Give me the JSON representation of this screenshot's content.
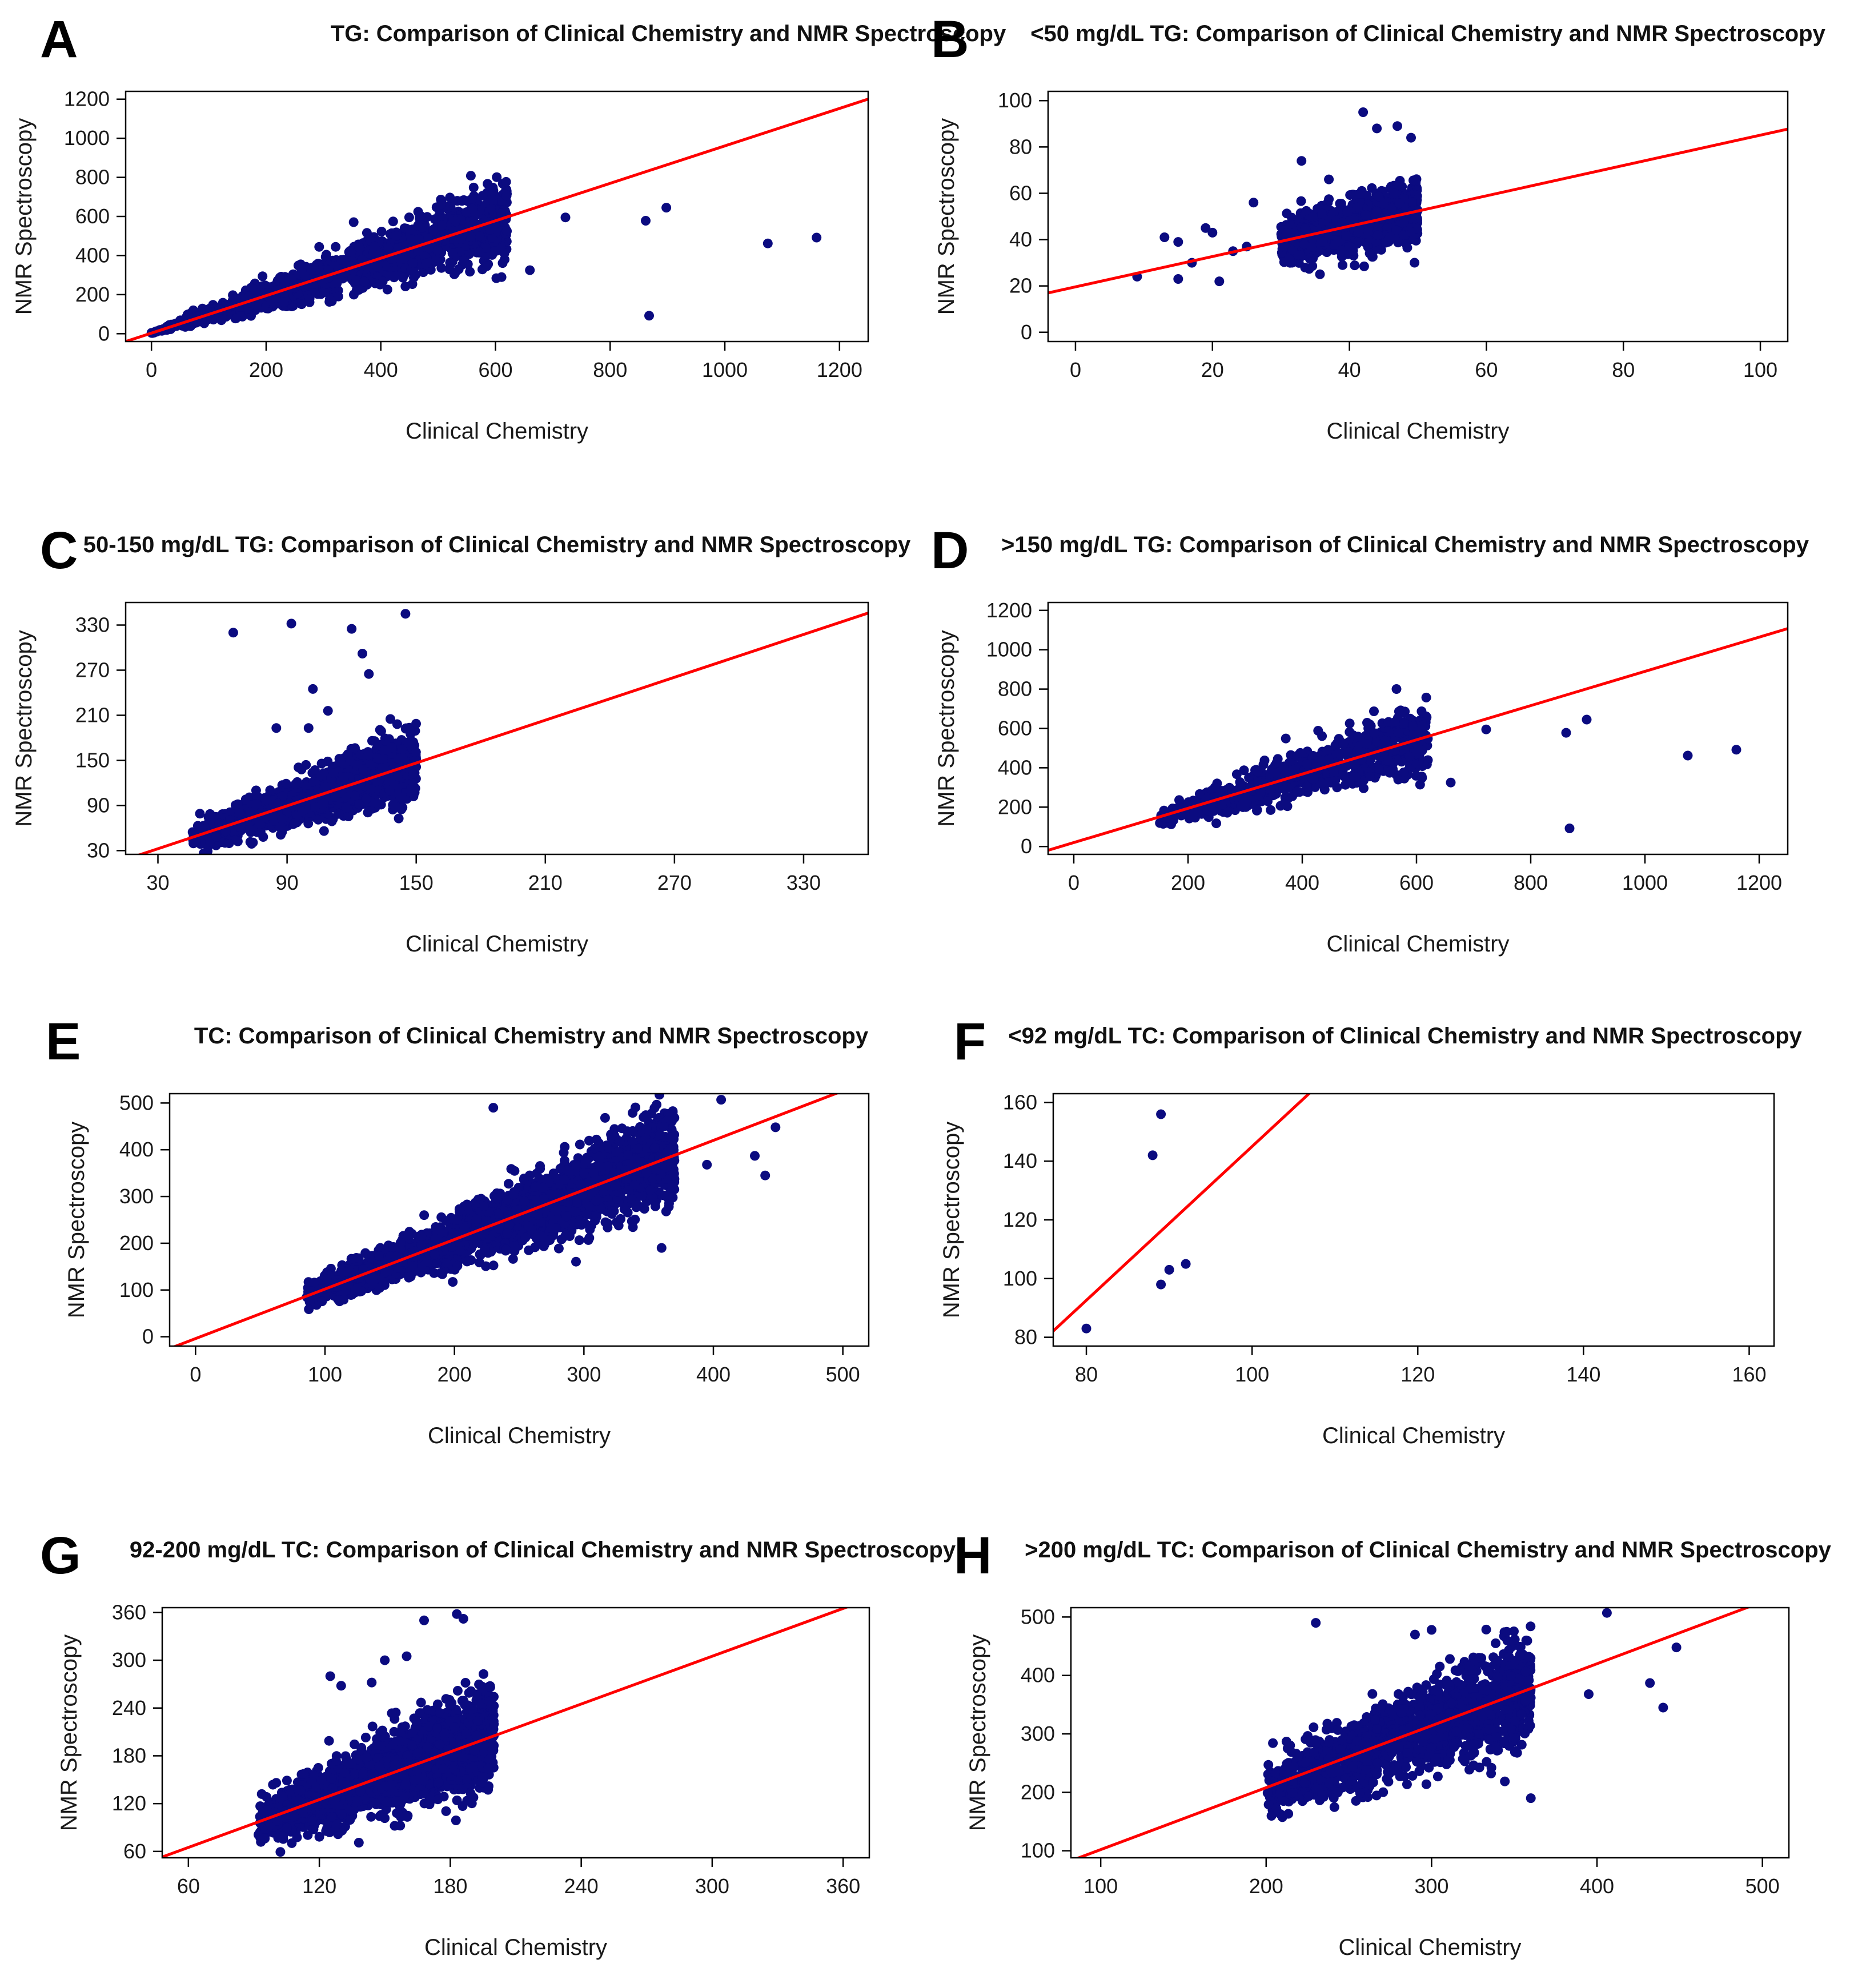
{
  "figure": {
    "point_color": "#0b0b80",
    "fit_line_color": "#ff0000"
  },
  "chart_data": [
    {
      "panel": "A",
      "type": "scatter",
      "title": "TG: Comparison of Clinical Chemistry and NMR Spectroscopy",
      "xlabel": "Clinical Chemistry",
      "ylabel": "NMR Spectroscopy",
      "xlim": [
        -45,
        1250
      ],
      "ylim": [
        -40,
        1240
      ],
      "xticks": [
        0,
        200,
        400,
        600,
        800,
        1000,
        1200
      ],
      "yticks": [
        0,
        200,
        400,
        600,
        800,
        1000,
        1200
      ],
      "fit_line": {
        "slope": 0.958,
        "intercept": 3
      },
      "cloud": {
        "x_min": 0,
        "x_max": 620,
        "slope": 0.958,
        "intercept": 3,
        "sd_rel": 0.2,
        "n": 1500,
        "seed": 11
      },
      "outliers": [
        [
          868,
          92
        ],
        [
          862,
          578
        ],
        [
          898,
          645
        ],
        [
          1075,
          462
        ],
        [
          1160,
          492
        ],
        [
          660,
          325
        ],
        [
          722,
          595
        ],
        [
          610,
          615
        ]
      ]
    },
    {
      "panel": "B",
      "type": "scatter",
      "title": "<50 mg/dL TG: Comparison of Clinical Chemistry and NMR Spectroscopy",
      "xlabel": "Clinical Chemistry",
      "ylabel": "NMR Spectroscopy",
      "xlim": [
        -4,
        104
      ],
      "ylim": [
        -4,
        104
      ],
      "xticks": [
        0,
        20,
        40,
        60,
        80,
        100
      ],
      "yticks": [
        0,
        20,
        40,
        60,
        80,
        100
      ],
      "fit_line": {
        "slope": 0.655,
        "intercept": 19.6
      },
      "cloud": {
        "x_min": 30,
        "x_max": 50,
        "slope": 0.655,
        "intercept": 19.6,
        "sd_rel": 0.13,
        "n": 1300,
        "seed": 22
      },
      "outliers": [
        [
          9,
          24
        ],
        [
          13,
          41
        ],
        [
          15,
          39
        ],
        [
          15,
          23
        ],
        [
          17,
          30
        ],
        [
          19,
          45
        ],
        [
          20,
          43
        ],
        [
          21,
          22
        ],
        [
          23,
          35
        ],
        [
          25,
          37
        ],
        [
          26,
          56
        ],
        [
          33,
          74
        ],
        [
          37,
          66
        ],
        [
          39,
          29
        ],
        [
          42,
          95
        ],
        [
          44,
          88
        ],
        [
          47,
          89
        ],
        [
          49,
          84
        ]
      ]
    },
    {
      "panel": "C",
      "type": "scatter",
      "title": "50-150 mg/dL TG: Comparison of Clinical Chemistry and NMR Spectroscopy",
      "xlabel": "Clinical Chemistry",
      "ylabel": "NMR Spectroscopy",
      "xlim": [
        15,
        360
      ],
      "ylim": [
        25,
        360
      ],
      "xticks": [
        30,
        90,
        150,
        210,
        270,
        330
      ],
      "yticks": [
        30,
        90,
        150,
        210,
        270,
        330
      ],
      "fit_line": {
        "slope": 0.95,
        "intercept": 4
      },
      "cloud": {
        "x_min": 46,
        "x_max": 150,
        "slope": 0.95,
        "intercept": 4,
        "sd_rel": 0.17,
        "n": 1800,
        "seed": 33
      },
      "outliers": [
        [
          65,
          320
        ],
        [
          92,
          332
        ],
        [
          120,
          325
        ],
        [
          125,
          292
        ],
        [
          128,
          265
        ],
        [
          145,
          345
        ],
        [
          102,
          245
        ],
        [
          85,
          193
        ],
        [
          100,
          193
        ],
        [
          109,
          216
        ],
        [
          138,
          205
        ]
      ]
    },
    {
      "panel": "D",
      "type": "scatter",
      "title": ">150 mg/dL TG: Comparison of Clinical Chemistry and NMR Spectroscopy",
      "xlabel": "Clinical Chemistry",
      "ylabel": "NMR Spectroscopy",
      "xlim": [
        -45,
        1250
      ],
      "ylim": [
        -40,
        1240
      ],
      "xticks": [
        0,
        200,
        400,
        600,
        800,
        1000,
        1200
      ],
      "yticks": [
        0,
        200,
        400,
        600,
        800,
        1000,
        1200
      ],
      "fit_line": {
        "slope": 0.87,
        "intercept": 20
      },
      "cloud": {
        "x_min": 150,
        "x_max": 620,
        "slope": 0.9,
        "intercept": 5,
        "sd_rel": 0.18,
        "n": 900,
        "seed": 44
      },
      "outliers": [
        [
          868,
          92
        ],
        [
          862,
          578
        ],
        [
          898,
          645
        ],
        [
          1075,
          462
        ],
        [
          1160,
          492
        ],
        [
          660,
          325
        ],
        [
          722,
          595
        ],
        [
          610,
          615
        ]
      ]
    },
    {
      "panel": "E",
      "type": "scatter",
      "title": "TC: Comparison of Clinical Chemistry and NMR Spectroscopy",
      "xlabel": "Clinical Chemistry",
      "ylabel": "NMR Spectroscopy",
      "xlim": [
        -20,
        520
      ],
      "ylim": [
        -20,
        520
      ],
      "xticks": [
        0,
        100,
        200,
        300,
        400,
        500
      ],
      "yticks": [
        0,
        100,
        200,
        300,
        400,
        500
      ],
      "fit_line": {
        "slope": 1.06,
        "intercept": -4
      },
      "cloud": {
        "x_min": 85,
        "x_max": 370,
        "slope": 1.06,
        "intercept": -4,
        "sd_rel": 0.14,
        "n": 2600,
        "seed": 55
      },
      "outliers": [
        [
          230,
          490
        ],
        [
          406,
          507
        ],
        [
          448,
          448
        ],
        [
          432,
          387
        ],
        [
          440,
          345
        ],
        [
          360,
          190
        ],
        [
          395,
          368
        ]
      ]
    },
    {
      "panel": "F",
      "type": "scatter",
      "title": "<92 mg/dL TC: Comparison of Clinical Chemistry and NMR Spectroscopy",
      "xlabel": "Clinical Chemistry",
      "ylabel": "NMR Spectroscopy",
      "xlim": [
        76,
        163
      ],
      "ylim": [
        77,
        163
      ],
      "xticks": [
        80,
        100,
        120,
        140,
        160
      ],
      "yticks": [
        80,
        100,
        120,
        140,
        160
      ],
      "fit_line": {
        "slope": 2.62,
        "intercept": -117
      },
      "cloud": {
        "x_min": 0,
        "x_max": 0,
        "slope": 0,
        "intercept": 0,
        "sd_rel": 0,
        "n": 0,
        "seed": 66
      },
      "outliers": [
        [
          80,
          83
        ],
        [
          88,
          142
        ],
        [
          89,
          156
        ],
        [
          89,
          98
        ],
        [
          90,
          103
        ],
        [
          92,
          105
        ]
      ]
    },
    {
      "panel": "G",
      "type": "scatter",
      "title": "92-200 mg/dL TC: Comparison of Clinical Chemistry and NMR Spectroscopy",
      "xlabel": "Clinical Chemistry",
      "ylabel": "NMR Spectroscopy",
      "xlim": [
        48,
        372
      ],
      "ylim": [
        52,
        366
      ],
      "xticks": [
        60,
        120,
        180,
        240,
        300,
        360
      ],
      "yticks": [
        60,
        120,
        180,
        240,
        300,
        360
      ],
      "fit_line": {
        "slope": 1.0,
        "intercept": 5
      },
      "cloud": {
        "x_min": 92,
        "x_max": 200,
        "slope": 1.02,
        "intercept": 3,
        "sd_rel": 0.16,
        "n": 2200,
        "seed": 77
      },
      "outliers": [
        [
          168,
          350
        ],
        [
          183,
          358
        ],
        [
          186,
          352
        ],
        [
          125,
          280
        ],
        [
          130,
          268
        ],
        [
          144,
          272
        ],
        [
          150,
          300
        ],
        [
          160,
          305
        ]
      ]
    },
    {
      "panel": "H",
      "type": "scatter",
      "title": ">200 mg/dL TC: Comparison of Clinical Chemistry and NMR Spectroscopy",
      "xlabel": "Clinical Chemistry",
      "ylabel": "NMR Spectroscopy",
      "xlim": [
        82,
        516
      ],
      "ylim": [
        88,
        516
      ],
      "xticks": [
        100,
        200,
        300,
        400,
        500
      ],
      "yticks": [
        100,
        200,
        300,
        400,
        500
      ],
      "fit_line": {
        "slope": 1.06,
        "intercept": -4
      },
      "cloud": {
        "x_min": 200,
        "x_max": 360,
        "slope": 1.06,
        "intercept": -4,
        "sd_rel": 0.13,
        "n": 1600,
        "seed": 88
      },
      "outliers": [
        [
          230,
          490
        ],
        [
          406,
          507
        ],
        [
          448,
          448
        ],
        [
          432,
          387
        ],
        [
          440,
          345
        ],
        [
          360,
          190
        ],
        [
          395,
          368
        ],
        [
          290,
          470
        ],
        [
          300,
          478
        ]
      ]
    }
  ]
}
